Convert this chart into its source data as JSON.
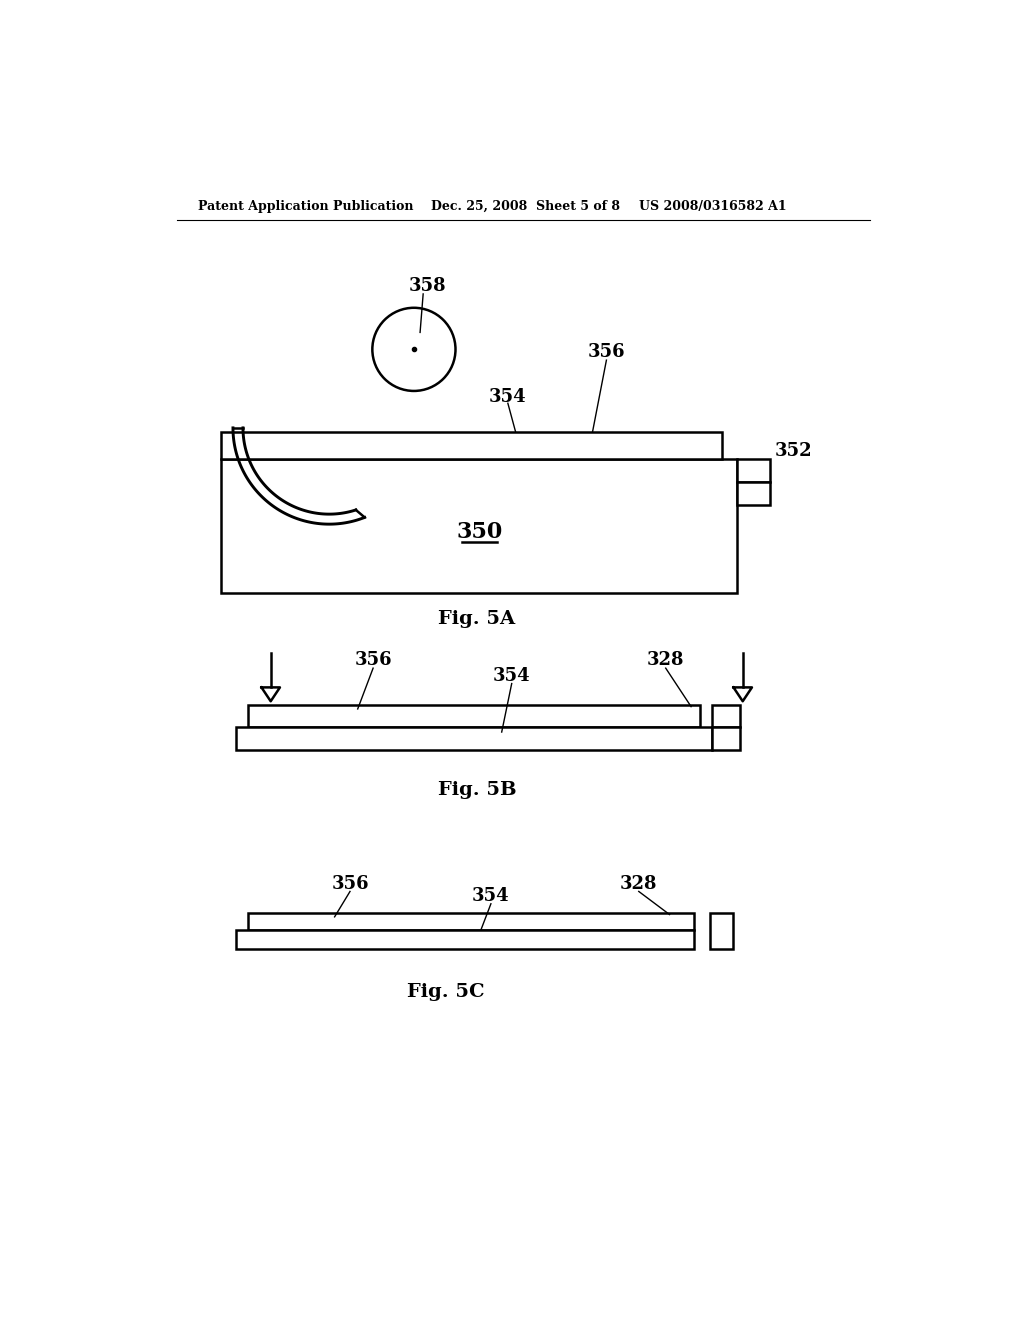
{
  "bg_color": "#ffffff",
  "line_color": "#000000",
  "header_left": "Patent Application Publication",
  "header_center": "Dec. 25, 2008  Sheet 5 of 8",
  "header_right": "US 2008/0316582 A1",
  "fig5a_label": "Fig. 5A",
  "fig5b_label": "Fig. 5B",
  "fig5c_label": "Fig. 5C",
  "label_350": "350",
  "label_352": "352",
  "label_354": "354",
  "label_356": "356",
  "label_358": "358",
  "label_328_b": "328",
  "label_354_b": "354",
  "label_356_b": "356",
  "label_328_c": "328",
  "label_354_c": "354",
  "label_356_c": "356"
}
